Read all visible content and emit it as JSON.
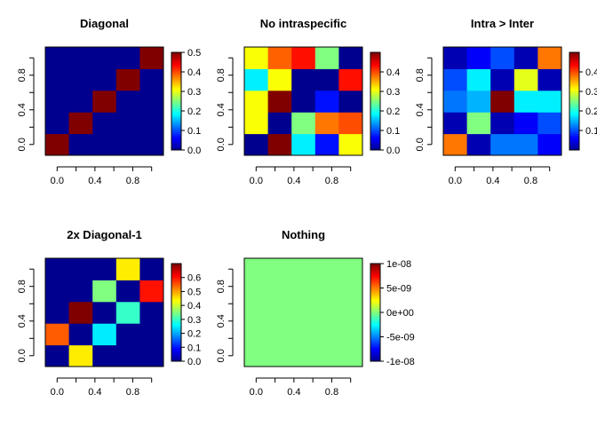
{
  "colormap": [
    "#00008F",
    "#0000FF",
    "#0080FF",
    "#00FFFF",
    "#80FF80",
    "#FFFF00",
    "#FF8000",
    "#FF0000",
    "#800000"
  ],
  "chart_data": [
    {
      "type": "heatmap",
      "title": "Diagonal",
      "x_ticks": [
        "0.0",
        "0.4",
        "0.8"
      ],
      "y_ticks": [
        "0.0",
        "0.4",
        "0.8"
      ],
      "zlim": [
        0,
        0.5
      ],
      "colorbar_ticks": [
        "0.0",
        "0.1",
        "0.2",
        "0.3",
        "0.4",
        "0.5"
      ],
      "colorbar_values": [
        0,
        0.1,
        0.2,
        0.3,
        0.4,
        0.5
      ],
      "rows": 5,
      "cols": 5,
      "values": [
        [
          0.5,
          0.0,
          0.0,
          0.0,
          0.0
        ],
        [
          0.0,
          0.5,
          0.0,
          0.0,
          0.0
        ],
        [
          0.0,
          0.0,
          0.5,
          0.0,
          0.0
        ],
        [
          0.0,
          0.0,
          0.0,
          0.5,
          0.0
        ],
        [
          0.0,
          0.0,
          0.0,
          0.0,
          0.5
        ]
      ]
    },
    {
      "type": "heatmap",
      "title": "No intraspecific",
      "x_ticks": [
        "0.0",
        "0.4",
        "0.8"
      ],
      "y_ticks": [
        "0.0",
        "0.4",
        "0.8"
      ],
      "zlim": [
        0,
        0.5
      ],
      "colorbar_ticks": [
        "0.0",
        "0.1",
        "0.2",
        "0.3",
        "0.4"
      ],
      "colorbar_values": [
        0,
        0.1,
        0.2,
        0.3,
        0.4
      ],
      "rows": 5,
      "cols": 5,
      "values": [
        [
          0.0,
          0.5,
          0.18,
          0.07,
          0.31
        ],
        [
          0.31,
          0.0,
          0.25,
          0.38,
          0.4
        ],
        [
          0.31,
          0.5,
          0.0,
          0.07,
          0.0
        ],
        [
          0.18,
          0.31,
          0.0,
          0.0,
          0.43
        ],
        [
          0.31,
          0.39,
          0.43,
          0.25,
          0.0
        ]
      ]
    },
    {
      "type": "heatmap",
      "title": "Intra > Inter",
      "x_ticks": [
        "0.0",
        "0.4",
        "0.8"
      ],
      "y_ticks": [
        "0.0",
        "0.4",
        "0.8"
      ],
      "zlim": [
        0,
        0.5
      ],
      "colorbar_ticks": [
        "0.1",
        "0.2",
        "0.3",
        "0.4"
      ],
      "colorbar_values": [
        0.1,
        0.2,
        0.3,
        0.4
      ],
      "rows": 5,
      "cols": 5,
      "values": [
        [
          0.38,
          0.02,
          0.12,
          0.12,
          0.06
        ],
        [
          0.02,
          0.25,
          0.02,
          0.06,
          0.1
        ],
        [
          0.12,
          0.15,
          0.5,
          0.18,
          0.18
        ],
        [
          0.1,
          0.18,
          0.02,
          0.3,
          0.02
        ],
        [
          0.02,
          0.06,
          0.1,
          0.02,
          0.38
        ]
      ]
    },
    {
      "type": "heatmap",
      "title": "2x Diagonal-1",
      "x_ticks": [
        "0.0",
        "0.4",
        "0.8"
      ],
      "y_ticks": [
        "0.0",
        "0.4",
        "0.8"
      ],
      "zlim": [
        0,
        0.7
      ],
      "colorbar_ticks": [
        "0.0",
        "0.1",
        "0.2",
        "0.3",
        "0.4",
        "0.5",
        "0.6"
      ],
      "colorbar_values": [
        0,
        0.1,
        0.2,
        0.3,
        0.4,
        0.5,
        0.6
      ],
      "rows": 5,
      "cols": 5,
      "values": [
        [
          0.0,
          0.45,
          0.0,
          0.0,
          0.0
        ],
        [
          0.55,
          0.0,
          0.25,
          0.0,
          0.0
        ],
        [
          0.0,
          0.7,
          0.0,
          0.3,
          0.0
        ],
        [
          0.0,
          0.0,
          0.35,
          0.0,
          0.6
        ],
        [
          0.0,
          0.0,
          0.0,
          0.45,
          0.0
        ]
      ]
    },
    {
      "type": "heatmap",
      "title": "Nothing",
      "x_ticks": [
        "0.0",
        "0.4",
        "0.8"
      ],
      "y_ticks": [
        "0.0",
        "0.4",
        "0.8"
      ],
      "zlim": [
        -1e-08,
        1e-08
      ],
      "colorbar_ticks": [
        "-1e-08",
        "-5e-09",
        "0e+00",
        "5e-09",
        "1e-08"
      ],
      "colorbar_values": [
        -1e-08,
        -5e-09,
        0,
        5e-09,
        1e-08
      ],
      "rows": 5,
      "cols": 5,
      "values": [
        [
          0,
          0,
          0,
          0,
          0
        ],
        [
          0,
          0,
          0,
          0,
          0
        ],
        [
          0,
          0,
          0,
          0,
          0
        ],
        [
          0,
          0,
          0,
          0,
          0
        ],
        [
          0,
          0,
          0,
          0,
          0
        ]
      ]
    }
  ]
}
